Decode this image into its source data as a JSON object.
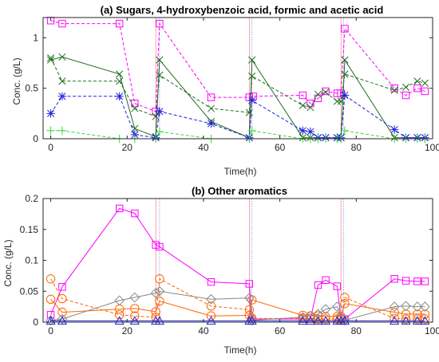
{
  "chart_data": [
    {
      "type": "line",
      "title": "(a) Sugars, 4-hydroxybenzoic acid, formic and acetic acid",
      "xlabel": "Time(h)",
      "ylabel": "Conc. (g/L)",
      "xlim": [
        -2,
        100
      ],
      "ylim": [
        0,
        1.2
      ],
      "xticks": [
        "0",
        "20",
        "40",
        "60",
        "80",
        "100"
      ],
      "yticks": [
        "0",
        "0.5",
        "1"
      ],
      "ytick_values": [
        0,
        0.5,
        1
      ],
      "vlines": [
        27.5,
        28.5,
        52,
        52.7,
        76,
        76.7
      ],
      "series": [
        {
          "color": "#ff00ff",
          "marker": "square",
          "dash": true,
          "x": [
            0,
            3,
            18,
            22,
            27.5,
            28.5,
            42,
            52,
            53,
            66,
            68,
            70,
            72,
            75,
            76,
            77,
            90,
            93,
            96,
            98
          ],
          "y": [
            1.17,
            1.14,
            1.14,
            0.35,
            0.27,
            1.14,
            0.41,
            0.41,
            0.42,
            0.43,
            0.35,
            0.4,
            0.47,
            0.45,
            0.45,
            1.09,
            0.5,
            0.43,
            0.5,
            0.47
          ]
        },
        {
          "color": "#1e6e1e",
          "marker": "x",
          "dash": false,
          "x": [
            0,
            3,
            18,
            22,
            27.5,
            28.5,
            42,
            52,
            52.7,
            66,
            68,
            70,
            72,
            75,
            76,
            77,
            90,
            93,
            96,
            98
          ],
          "y": [
            0.78,
            0.81,
            0.64,
            0.1,
            0.02,
            0.78,
            0.17,
            0.01,
            0.78,
            0.01,
            0.01,
            0.01,
            0.01,
            0.01,
            0.01,
            0.78,
            0.01,
            0.01,
            0.01,
            0.01
          ]
        },
        {
          "color": "#1e6e1e",
          "marker": "x",
          "dash": true,
          "x": [
            0,
            3,
            18,
            22,
            27.5,
            28.5,
            42,
            52,
            52.7,
            66,
            68,
            70,
            72,
            75,
            76,
            77,
            90,
            93,
            96,
            98
          ],
          "y": [
            0.8,
            0.57,
            0.57,
            0.3,
            0.22,
            0.63,
            0.3,
            0.26,
            0.62,
            0.33,
            0.31,
            0.44,
            0.46,
            0.37,
            0.37,
            0.64,
            0.48,
            0.51,
            0.57,
            0.55
          ]
        },
        {
          "color": "#2020dd",
          "marker": "star",
          "dash": true,
          "x": [
            0,
            3,
            18,
            22,
            27.5,
            28.5,
            42,
            52,
            52.7,
            66,
            68,
            70,
            72,
            75,
            76,
            77,
            90,
            93,
            96,
            98
          ],
          "y": [
            0.25,
            0.42,
            0.42,
            0.04,
            0.01,
            0.27,
            0.15,
            0.01,
            0.38,
            0.08,
            0.07,
            0.01,
            0.01,
            0.01,
            0.01,
            0.43,
            0.09,
            0.01,
            0.01,
            0.01
          ]
        },
        {
          "color": "#33dd33",
          "marker": "plus",
          "dash": true,
          "x": [
            0,
            3,
            18,
            22,
            27.5,
            28.5,
            42,
            52,
            52.7,
            66,
            68,
            70,
            72,
            75,
            76,
            77,
            90,
            93,
            96,
            98
          ],
          "y": [
            0.08,
            0.08,
            0.0,
            0.0,
            0.0,
            0.07,
            0.0,
            0.0,
            0.08,
            0.0,
            0.0,
            0.0,
            0.0,
            0.0,
            0.0,
            0.08,
            0.0,
            0.0,
            0.0,
            0.0
          ]
        }
      ]
    },
    {
      "type": "line",
      "title": "(b) Other aromatics",
      "xlabel": "Time(h)",
      "ylabel": "Conc. (g/L)",
      "xlim": [
        -2,
        100
      ],
      "ylim": [
        0,
        0.2
      ],
      "xticks": [
        "0",
        "20",
        "40",
        "60",
        "80",
        "100"
      ],
      "yticks": [
        "0",
        "0.05",
        "0.1",
        "0.15",
        "0.2"
      ],
      "ytick_values": [
        0,
        0.05,
        0.1,
        0.15,
        0.2
      ],
      "vlines": [
        27.5,
        28.5,
        52,
        52.7,
        76,
        76.7
      ],
      "series": [
        {
          "color": "#ff00ff",
          "marker": "square",
          "dash": false,
          "x": [
            0,
            3,
            18,
            22,
            27.5,
            28.5,
            42,
            52,
            52.7,
            66,
            68,
            70,
            72,
            75,
            76,
            77,
            90,
            93,
            96,
            98
          ],
          "y": [
            0.012,
            0.057,
            0.184,
            0.176,
            0.125,
            0.122,
            0.065,
            0.062,
            0.005,
            0.005,
            0.005,
            0.06,
            0.068,
            0.058,
            0.005,
            0.005,
            0.07,
            0.067,
            0.066,
            0.066
          ]
        },
        {
          "color": "#ff6600",
          "marker": "circle",
          "dash": true,
          "x": [
            0,
            3,
            18,
            22,
            27.5,
            28.5,
            42,
            52,
            52.7,
            66,
            68,
            70,
            72,
            75,
            76,
            77,
            90,
            93,
            96,
            98
          ],
          "y": [
            0.07,
            0.038,
            0.012,
            0.01,
            0.008,
            0.07,
            0.026,
            0.02,
            0.006,
            0.006,
            0.006,
            0.005,
            0.005,
            0.005,
            0.005,
            0.04,
            0.006,
            0.005,
            0.005,
            0.005
          ]
        },
        {
          "color": "#ff6600",
          "marker": "circle",
          "dash": false,
          "x": [
            0,
            3,
            18,
            22,
            27.5,
            28.5,
            42,
            52,
            52.7,
            66,
            68,
            70,
            72,
            75,
            76,
            77,
            90,
            93,
            96,
            98
          ],
          "y": [
            0.037,
            0.016,
            0.021,
            0.022,
            0.017,
            0.034,
            0.01,
            0.011,
            0.036,
            0.011,
            0.01,
            0.01,
            0.009,
            0.009,
            0.009,
            0.03,
            0.016,
            0.013,
            0.013,
            0.013
          ]
        },
        {
          "color": "#888888",
          "marker": "diamond",
          "dash": false,
          "x": [
            0,
            3,
            18,
            22,
            27.5,
            28.5,
            42,
            52,
            52.7,
            66,
            68,
            70,
            72,
            75,
            76,
            77,
            90,
            93,
            96,
            98
          ],
          "y": [
            0.003,
            0.005,
            0.035,
            0.04,
            0.047,
            0.05,
            0.037,
            0.039,
            0.003,
            0.008,
            0.01,
            0.013,
            0.021,
            0.025,
            0.008,
            0.003,
            0.025,
            0.026,
            0.025,
            0.025
          ]
        },
        {
          "color": "#2020dd",
          "marker": "triangle",
          "dash": false,
          "x": [
            0,
            3,
            18,
            22,
            27.5,
            28.5,
            42,
            52,
            52.7,
            66,
            68,
            70,
            72,
            75,
            76,
            77,
            90,
            93,
            96,
            98
          ],
          "y": [
            0.002,
            0.002,
            0.002,
            0.002,
            0.002,
            0.002,
            0.002,
            0.002,
            0.002,
            0.002,
            0.002,
            0.002,
            0.002,
            0.002,
            0.002,
            0.002,
            0.002,
            0.002,
            0.002,
            0.002
          ]
        }
      ]
    }
  ]
}
